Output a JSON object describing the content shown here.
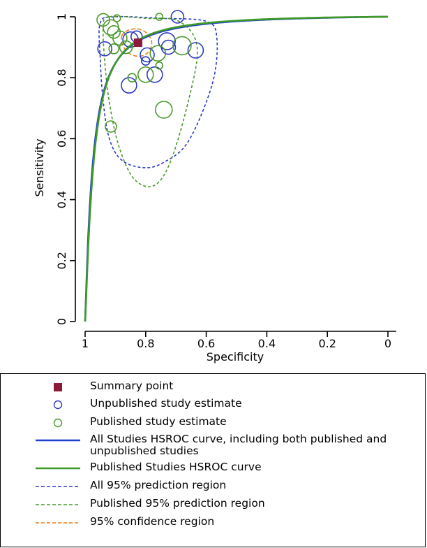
{
  "chart_data": {
    "type": "scatter",
    "xlabel": "Specificity",
    "ylabel": "Sensitivity",
    "x_reversed": true,
    "xlim": [
      1,
      0
    ],
    "ylim": [
      0,
      1
    ],
    "xticks": [
      "1",
      "0.8",
      "0.6",
      "0.4",
      "0.2",
      "0"
    ],
    "yticks": [
      "0",
      "0.2",
      "0.4",
      "0.6",
      "0.8",
      "1"
    ],
    "summary_point": {
      "spec": 0.825,
      "sens": 0.915
    },
    "series": [
      {
        "name": "Unpublished study estimate",
        "color": "#2b3bc0",
        "points": [
          {
            "spec": 0.695,
            "sens": 1.0,
            "r": 9
          },
          {
            "spec": 0.935,
            "sens": 0.895,
            "r": 10
          },
          {
            "spec": 0.85,
            "sens": 0.925,
            "r": 11
          },
          {
            "spec": 0.83,
            "sens": 0.935,
            "r": 8
          },
          {
            "spec": 0.73,
            "sens": 0.92,
            "r": 12
          },
          {
            "spec": 0.725,
            "sens": 0.9,
            "r": 10
          },
          {
            "spec": 0.635,
            "sens": 0.89,
            "r": 11
          },
          {
            "spec": 0.855,
            "sens": 0.775,
            "r": 11
          },
          {
            "spec": 0.8,
            "sens": 0.855,
            "r": 6
          },
          {
            "spec": 0.77,
            "sens": 0.81,
            "r": 11
          },
          {
            "spec": 0.795,
            "sens": 0.875,
            "r": 10
          }
        ]
      },
      {
        "name": "Published study estimate",
        "color": "#4a9a2a",
        "points": [
          {
            "spec": 0.94,
            "sens": 0.99,
            "r": 9
          },
          {
            "spec": 0.895,
            "sens": 0.995,
            "r": 5
          },
          {
            "spec": 0.915,
            "sens": 0.965,
            "r": 11
          },
          {
            "spec": 0.905,
            "sens": 0.95,
            "r": 9
          },
          {
            "spec": 0.885,
            "sens": 0.93,
            "r": 10
          },
          {
            "spec": 0.905,
            "sens": 0.895,
            "r": 7
          },
          {
            "spec": 0.865,
            "sens": 0.9,
            "r": 9
          },
          {
            "spec": 0.76,
            "sens": 0.88,
            "r": 11
          },
          {
            "spec": 0.755,
            "sens": 0.84,
            "r": 5
          },
          {
            "spec": 0.8,
            "sens": 0.81,
            "r": 11
          },
          {
            "spec": 0.845,
            "sens": 0.8,
            "r": 6
          },
          {
            "spec": 0.755,
            "sens": 1.0,
            "r": 5
          },
          {
            "spec": 0.74,
            "sens": 0.695,
            "r": 12
          },
          {
            "spec": 0.915,
            "sens": 0.64,
            "r": 8
          },
          {
            "spec": 0.68,
            "sens": 0.905,
            "r": 13
          }
        ]
      }
    ],
    "curves": [
      {
        "name": "All Studies HSROC curve",
        "color": "#1f3fd0",
        "a": 4.2,
        "b": 0.13
      },
      {
        "name": "Published Studies HSROC curve",
        "color": "#3e9a26",
        "a": 4.35,
        "b": 0.2
      }
    ],
    "regions": [
      {
        "name": "All 95% prediction region",
        "color": "#2b3bc0",
        "dash": "4,3",
        "points": [
          [
            0.9,
            1.0
          ],
          [
            0.75,
            0.995
          ],
          [
            0.6,
            0.985
          ],
          [
            0.565,
            0.93
          ],
          [
            0.58,
            0.78
          ],
          [
            0.66,
            0.59
          ],
          [
            0.745,
            0.52
          ],
          [
            0.81,
            0.505
          ],
          [
            0.88,
            0.53
          ],
          [
            0.92,
            0.6
          ],
          [
            0.94,
            0.72
          ],
          [
            0.95,
            0.86
          ],
          [
            0.95,
            0.98
          ]
        ]
      },
      {
        "name": "Published 95% prediction region",
        "color": "#4a9a2a",
        "dash": "4,3",
        "points": [
          [
            0.92,
            1.0
          ],
          [
            0.8,
            0.995
          ],
          [
            0.69,
            0.985
          ],
          [
            0.63,
            0.9
          ],
          [
            0.66,
            0.72
          ],
          [
            0.72,
            0.52
          ],
          [
            0.775,
            0.445
          ],
          [
            0.84,
            0.47
          ],
          [
            0.89,
            0.58
          ],
          [
            0.92,
            0.72
          ],
          [
            0.935,
            0.85
          ],
          [
            0.94,
            0.97
          ]
        ]
      },
      {
        "name": "95% confidence region",
        "color": "#f07c1a",
        "dash": "6,3",
        "points": [
          [
            0.88,
            0.935
          ],
          [
            0.86,
            0.955
          ],
          [
            0.825,
            0.96
          ],
          [
            0.795,
            0.945
          ],
          [
            0.78,
            0.915
          ],
          [
            0.79,
            0.885
          ],
          [
            0.82,
            0.87
          ],
          [
            0.855,
            0.88
          ],
          [
            0.875,
            0.905
          ]
        ]
      }
    ]
  },
  "legend": {
    "items": [
      {
        "label": "Summary point",
        "symbol": "square",
        "color": "#8b1a3a"
      },
      {
        "label": "Unpublished study estimate",
        "symbol": "circle",
        "color": "#2b3bc0"
      },
      {
        "label": "Published study estimate",
        "symbol": "circle",
        "color": "#4a9a2a"
      },
      {
        "label": "All Studies HSROC curve, including both published and unpublished studies",
        "symbol": "line",
        "color": "#1f3fd0"
      },
      {
        "label": "Published Studies HSROC curve",
        "symbol": "line",
        "color": "#3e9a26"
      },
      {
        "label": "All 95% prediction region",
        "symbol": "dash",
        "color": "#2b3bc0"
      },
      {
        "label": "Published 95% prediction region",
        "symbol": "dash",
        "color": "#4a9a2a"
      },
      {
        "label": "95% confidence region",
        "symbol": "dash",
        "color": "#f07c1a"
      }
    ]
  }
}
